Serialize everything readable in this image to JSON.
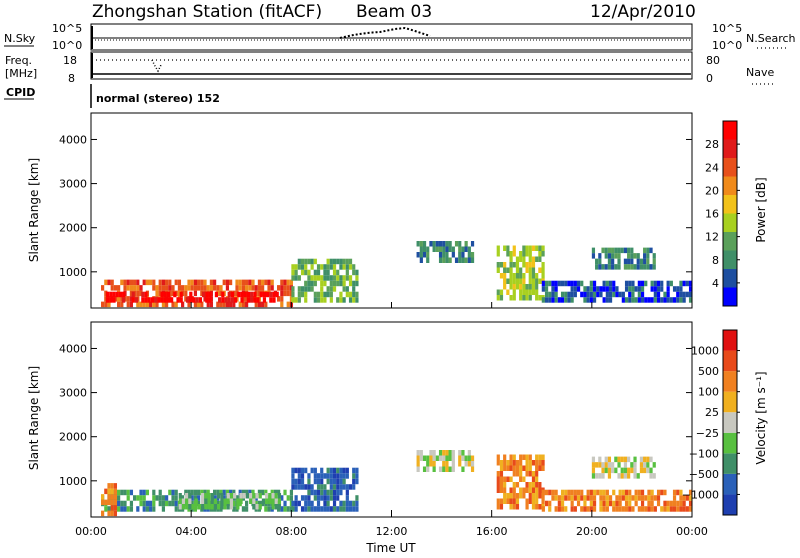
{
  "header": {
    "title": "Zhongshan Station (fitACF)",
    "beam": "Beam 03",
    "date": "12/Apr/2010"
  },
  "strip": {
    "nsky_label": "N.Sky",
    "nsky_ticks": [
      "10^5",
      "10^0"
    ],
    "nsearch_label": "N.Search",
    "nsearch_ticks": [
      "10^5",
      "10^0"
    ],
    "freq_label_1": "Freq.",
    "freq_label_2": "[MHz]",
    "freq_ticks": [
      "18",
      "8"
    ],
    "nave_label": "Nave",
    "nave_ticks": [
      "80",
      "0"
    ],
    "cpid_label": "CPID",
    "mode_text": "normal (stereo) 152"
  },
  "colors": {
    "power_scale": [
      "#0000ff",
      "#1e4fa0",
      "#3f8f68",
      "#5aa05a",
      "#a8d020",
      "#f2c21a",
      "#f08a1a",
      "#e8501a",
      "#e01a1a",
      "#ff0000"
    ],
    "velocity_scale": [
      "#1e3fb0",
      "#2a60b8",
      "#3f8f68",
      "#58c040",
      "#c8c8c0",
      "#f0b020",
      "#f08020",
      "#e84a1a",
      "#e01010"
    ],
    "gray": "#c8c8c0"
  },
  "chart_data": [
    {
      "type": "heatmap",
      "panel": "power",
      "ylabel": "Slant Range [km]",
      "yticks": [
        "1000",
        "2000",
        "3000",
        "4000"
      ],
      "ylim": [
        180,
        4600
      ],
      "xlim": [
        0,
        24
      ],
      "colorbar_label": "Power [dB]",
      "colorbar_ticks": [
        "4",
        "8",
        "12",
        "16",
        "20",
        "24",
        "28"
      ],
      "regions": [
        {
          "t0": 0.4,
          "t1": 8.0,
          "r0": 200,
          "r1": 700,
          "level": 7
        },
        {
          "t0": 0.6,
          "t1": 7.5,
          "r0": 300,
          "r1": 520,
          "level": 9
        },
        {
          "t0": 8.0,
          "t1": 10.6,
          "r0": 300,
          "r1": 1200,
          "level": 3
        },
        {
          "t0": 13.0,
          "t1": 15.2,
          "r0": 1200,
          "r1": 1650,
          "level": 2
        },
        {
          "t0": 16.2,
          "t1": 18.0,
          "r0": 350,
          "r1": 1500,
          "level": 4
        },
        {
          "t0": 20.0,
          "t1": 22.5,
          "r0": 1050,
          "r1": 1500,
          "level": 2
        },
        {
          "t0": 18.0,
          "t1": 24.0,
          "r0": 300,
          "r1": 700,
          "level": 1
        }
      ]
    },
    {
      "type": "heatmap",
      "panel": "velocity",
      "ylabel": "Slant Range [km]",
      "yticks": [
        "1000",
        "2000",
        "3000",
        "4000"
      ],
      "ylim": [
        180,
        4600
      ],
      "xlim": [
        0,
        24
      ],
      "xticks": [
        "00:00",
        "04:00",
        "08:00",
        "12:00",
        "16:00",
        "20:00",
        "00:00"
      ],
      "xlabel": "Time UT",
      "colorbar_label": "Velocity [m s⁻¹]",
      "colorbar_ticks": [
        "1000",
        "500",
        "100",
        "25",
        "−25",
        "−100",
        "−500",
        "−1000"
      ],
      "regions": [
        {
          "t0": 0.4,
          "t1": 8.0,
          "r0": 300,
          "r1": 700,
          "level": 2
        },
        {
          "t0": 3.5,
          "t1": 7.5,
          "r0": 350,
          "r1": 650,
          "level": 3
        },
        {
          "t0": 0.4,
          "t1": 1.0,
          "r0": 200,
          "r1": 900,
          "level": 6
        },
        {
          "t0": 8.0,
          "t1": 10.6,
          "r0": 300,
          "r1": 1200,
          "level": 1
        },
        {
          "t0": 13.0,
          "t1": 15.2,
          "r0": 1200,
          "r1": 1650,
          "level": 4
        },
        {
          "t0": 16.2,
          "t1": 18.0,
          "r0": 350,
          "r1": 1500,
          "level": 6
        },
        {
          "t0": 20.0,
          "t1": 22.5,
          "r0": 1050,
          "r1": 1500,
          "level": 4
        },
        {
          "t0": 18.0,
          "t1": 24.0,
          "r0": 300,
          "r1": 700,
          "level": 6
        }
      ]
    }
  ]
}
